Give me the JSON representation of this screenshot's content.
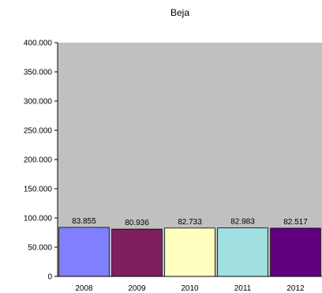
{
  "chart_data": {
    "type": "bar",
    "title": "Beja",
    "xlabel": "",
    "ylabel": "",
    "categories": [
      "2008",
      "2009",
      "2010",
      "2011",
      "2012"
    ],
    "values": [
      83855,
      80936,
      82733,
      82983,
      82517
    ],
    "data_labels": [
      "83.855",
      "80.936",
      "82.733",
      "82.983",
      "82.517"
    ],
    "ylim": [
      0,
      400000
    ],
    "y_ticks": [
      0,
      50000,
      100000,
      150000,
      200000,
      250000,
      300000,
      350000,
      400000
    ],
    "y_tick_labels": [
      "0",
      "50.000",
      "100.000",
      "150.000",
      "200.000",
      "250.000",
      "300.000",
      "350.000",
      "400.000"
    ],
    "bar_colors": [
      "#8080FF",
      "#7F1F5F",
      "#FFFFC0",
      "#A0E0E0",
      "#600080"
    ],
    "plot_background": "#C0C0C0",
    "grid": false,
    "legend": "none"
  }
}
